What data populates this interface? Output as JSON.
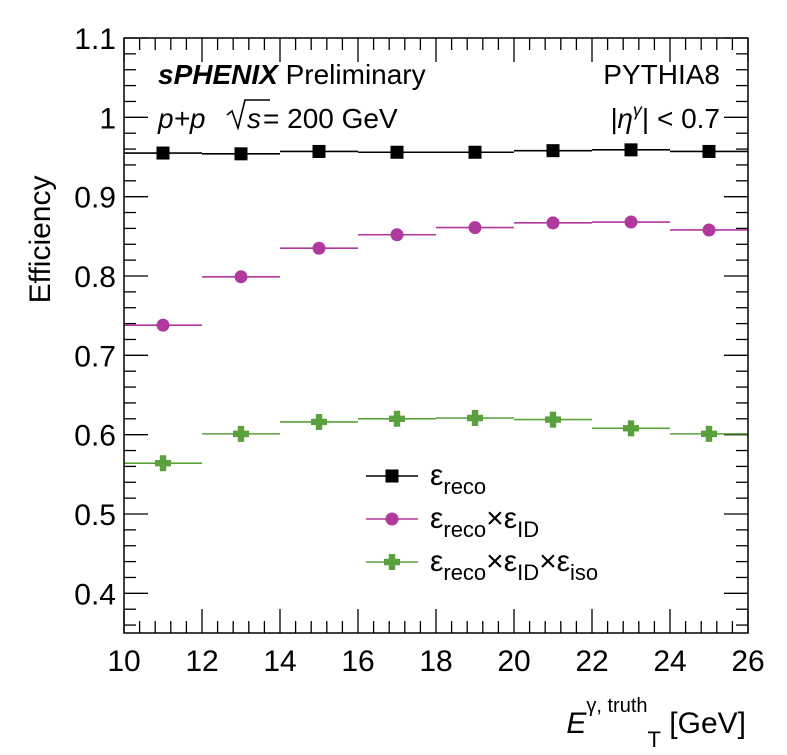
{
  "chart_data": {
    "type": "scatter",
    "xlabel": {
      "main": "E",
      "sup": "γ, truth",
      "sub": "T",
      "unit": " [GeV]"
    },
    "ylabel": "Efficiency",
    "xlim": [
      10,
      26
    ],
    "ylim": [
      0.35,
      1.1
    ],
    "x_ticks": [
      10,
      12,
      14,
      16,
      18,
      20,
      22,
      24,
      26
    ],
    "y_ticks": [
      0.4,
      0.5,
      0.6,
      0.7,
      0.8,
      0.9,
      1,
      1.1
    ],
    "grid": false,
    "legend_position": "bottom-center",
    "annotations": {
      "experiment_bold": "sPHENIX",
      "experiment_rest": " Preliminary",
      "collision": "p+p",
      "energy": " = 200 GeV",
      "generator": "PYTHIA8",
      "eta_cut": "|η",
      "eta_cut_sup": "γ",
      "eta_cut_rest": "| < 0.7"
    },
    "series": [
      {
        "name": "ε_reco",
        "legend_parts": [
          [
            "ε",
            ""
          ],
          [
            "reco",
            "sub"
          ]
        ],
        "marker": "square",
        "color": "#000000",
        "x": [
          11,
          13,
          15,
          17,
          19,
          21,
          23,
          25
        ],
        "xerr": [
          1,
          1,
          1,
          1,
          1,
          1,
          1,
          1
        ],
        "y": [
          0.955,
          0.954,
          0.957,
          0.956,
          0.956,
          0.958,
          0.959,
          0.957
        ]
      },
      {
        "name": "ε_reco×ε_ID",
        "legend_parts": [
          [
            "ε",
            ""
          ],
          [
            "reco",
            "sub"
          ],
          [
            "×ε",
            ""
          ],
          [
            "ID",
            "sub"
          ]
        ],
        "marker": "circle",
        "color": "#b0399e",
        "x": [
          11,
          13,
          15,
          17,
          19,
          21,
          23,
          25
        ],
        "xerr": [
          1,
          1,
          1,
          1,
          1,
          1,
          1,
          1
        ],
        "y": [
          0.738,
          0.799,
          0.835,
          0.852,
          0.861,
          0.867,
          0.868,
          0.858
        ]
      },
      {
        "name": "ε_reco×ε_ID×ε_iso",
        "legend_parts": [
          [
            "ε",
            ""
          ],
          [
            "reco",
            "sub"
          ],
          [
            "×ε",
            ""
          ],
          [
            "ID",
            "sub"
          ],
          [
            "×ε",
            ""
          ],
          [
            "iso",
            "sub"
          ]
        ],
        "marker": "cross",
        "color": "#5aa03c",
        "x": [
          11,
          13,
          15,
          17,
          19,
          21,
          23,
          25
        ],
        "xerr": [
          1,
          1,
          1,
          1,
          1,
          1,
          1,
          1
        ],
        "y": [
          0.564,
          0.601,
          0.616,
          0.62,
          0.621,
          0.619,
          0.608,
          0.601
        ]
      }
    ]
  }
}
